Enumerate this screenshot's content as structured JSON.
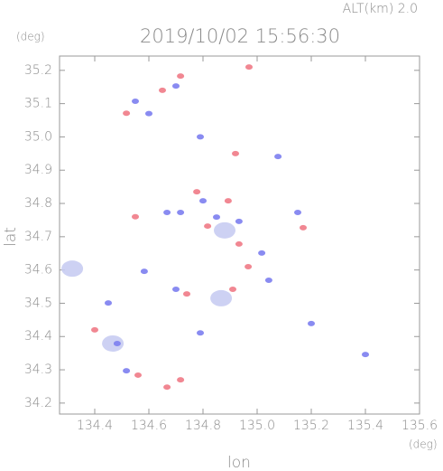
{
  "chart_data": {
    "type": "scatter",
    "title": "2019/10/02 15:56:30",
    "annotation": "ALT(km) 2.0",
    "x_label": "lon",
    "y_label": "lat",
    "x_unit": "(deg)",
    "y_unit": "(deg)",
    "xlim": [
      134.27,
      135.6
    ],
    "ylim": [
      34.167,
      35.243
    ],
    "xticks": [
      134.4,
      134.6,
      134.8,
      {
        "value": 135,
        "label": "135.0"
      },
      135.2,
      135.4,
      135.6
    ],
    "yticks": [
      34.2,
      34.3,
      34.4,
      34.5,
      34.6,
      34.7,
      34.8,
      34.9,
      {
        "value": 35,
        "label": "35.0"
      },
      35.1,
      35.2
    ],
    "series": [
      {
        "color": "#c8ccf2",
        "x": [
          134.317,
          134.467,
          134.867,
          134.88
        ],
        "y": [
          34.604,
          34.379,
          34.515,
          34.719
        ]
      },
      {
        "color": "#f07a86",
        "x": [
          134.517,
          134.65,
          134.717,
          134.97,
          134.92,
          134.777,
          134.893,
          135.17,
          134.55,
          134.933,
          134.967,
          134.91,
          134.56,
          134.667,
          134.717,
          134.4,
          134.817,
          134.74
        ],
        "y": [
          35.071,
          35.14,
          35.183,
          35.21,
          34.95,
          34.835,
          34.808,
          34.727,
          34.76,
          34.678,
          34.61,
          34.542,
          34.284,
          34.248,
          34.27,
          34.42,
          34.732,
          34.528
        ]
      },
      {
        "color": "#7c7ef0",
        "x": [
          134.55,
          134.7,
          134.6,
          134.79,
          135.077,
          134.8,
          134.717,
          134.85,
          134.933,
          135.017,
          135.043,
          135.15,
          134.667,
          134.583,
          134.45,
          134.483,
          134.79,
          135.2,
          135.4,
          134.7,
          134.517
        ],
        "y": [
          35.107,
          35.153,
          35.07,
          35.0,
          34.941,
          34.808,
          34.773,
          34.759,
          34.746,
          34.651,
          34.569,
          34.773,
          34.773,
          34.596,
          34.501,
          34.379,
          34.411,
          34.439,
          34.346,
          34.542,
          34.297
        ]
      }
    ]
  }
}
